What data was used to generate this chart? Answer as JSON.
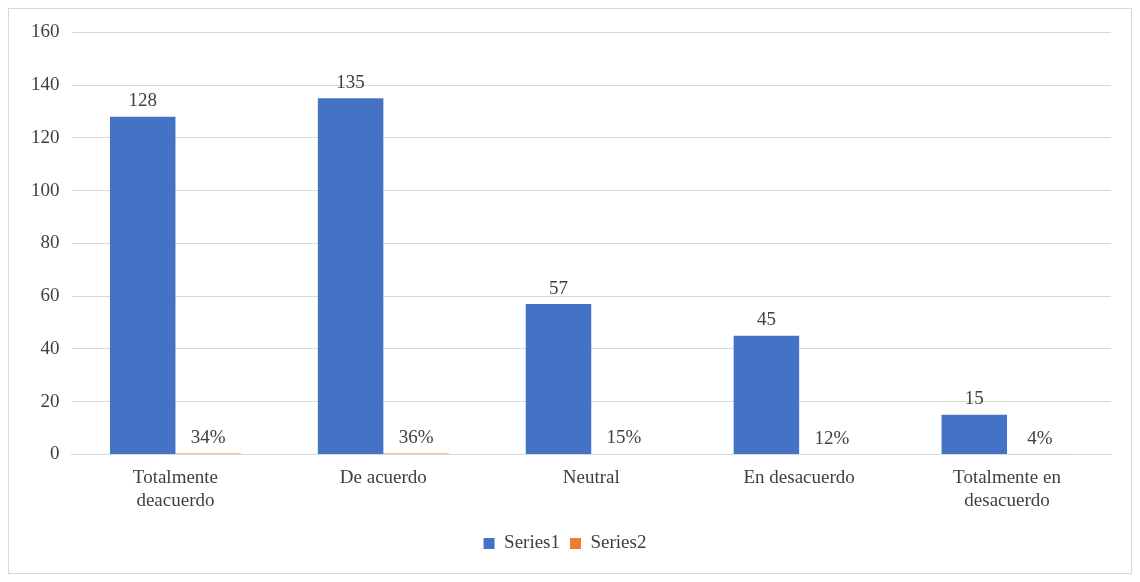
{
  "chart_data": {
    "type": "bar",
    "categories": [
      "Totalmente deacuerdo",
      "De acuerdo",
      "Neutral",
      "En desacuerdo",
      "Totalmente en desacuerdo"
    ],
    "series": [
      {
        "name": "Series1",
        "color": "#4472c4",
        "values": [
          128,
          135,
          57,
          45,
          15
        ],
        "value_labels": [
          "128",
          "135",
          "57",
          "45",
          "15"
        ]
      },
      {
        "name": "Series2",
        "color": "#ed7d31",
        "values": [
          0.34,
          0.36,
          0.15,
          0.12,
          0.04
        ],
        "value_labels": [
          "34%",
          "36%",
          "15%",
          "12%",
          "4%"
        ]
      }
    ],
    "ylim": [
      0,
      160
    ],
    "yticks": [
      0,
      20,
      40,
      60,
      80,
      100,
      120,
      140,
      160
    ],
    "grid": "y",
    "legend": "bottom"
  }
}
